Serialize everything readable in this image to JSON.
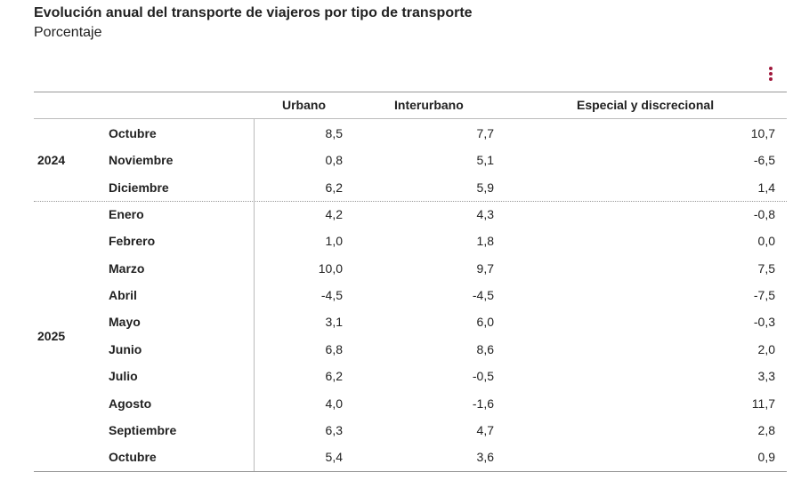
{
  "header": {
    "title": "Evolución anual del transporte de viajeros por tipo de transporte",
    "subtitle": "Porcentaje"
  },
  "table": {
    "columns": [
      "Urbano",
      "Interurbano",
      "Especial y discrecional"
    ],
    "groups": [
      {
        "year": "2024",
        "rows": [
          {
            "month": "Octubre",
            "values": [
              "8,5",
              "7,7",
              "10,7"
            ]
          },
          {
            "month": "Noviembre",
            "values": [
              "0,8",
              "5,1",
              "-6,5"
            ]
          },
          {
            "month": "Diciembre",
            "values": [
              "6,2",
              "5,9",
              "1,4"
            ]
          }
        ]
      },
      {
        "year": "2025",
        "rows": [
          {
            "month": "Enero",
            "values": [
              "4,2",
              "4,3",
              "-0,8"
            ]
          },
          {
            "month": "Febrero",
            "values": [
              "1,0",
              "1,8",
              "0,0"
            ]
          },
          {
            "month": "Marzo",
            "values": [
              "10,0",
              "9,7",
              "7,5"
            ]
          },
          {
            "month": "Abril",
            "values": [
              "-4,5",
              "-4,5",
              "-7,5"
            ]
          },
          {
            "month": "Mayo",
            "values": [
              "3,1",
              "6,0",
              "-0,3"
            ]
          },
          {
            "month": "Junio",
            "values": [
              "6,8",
              "8,6",
              "2,0"
            ]
          },
          {
            "month": "Julio",
            "values": [
              "6,2",
              "-0,5",
              "3,3"
            ]
          },
          {
            "month": "Agosto",
            "values": [
              "4,0",
              "-1,6",
              "11,7"
            ]
          },
          {
            "month": "Septiembre",
            "values": [
              "6,3",
              "4,7",
              "2,8"
            ]
          },
          {
            "month": "Octubre",
            "values": [
              "5,4",
              "3,6",
              "0,9"
            ]
          }
        ]
      }
    ]
  }
}
